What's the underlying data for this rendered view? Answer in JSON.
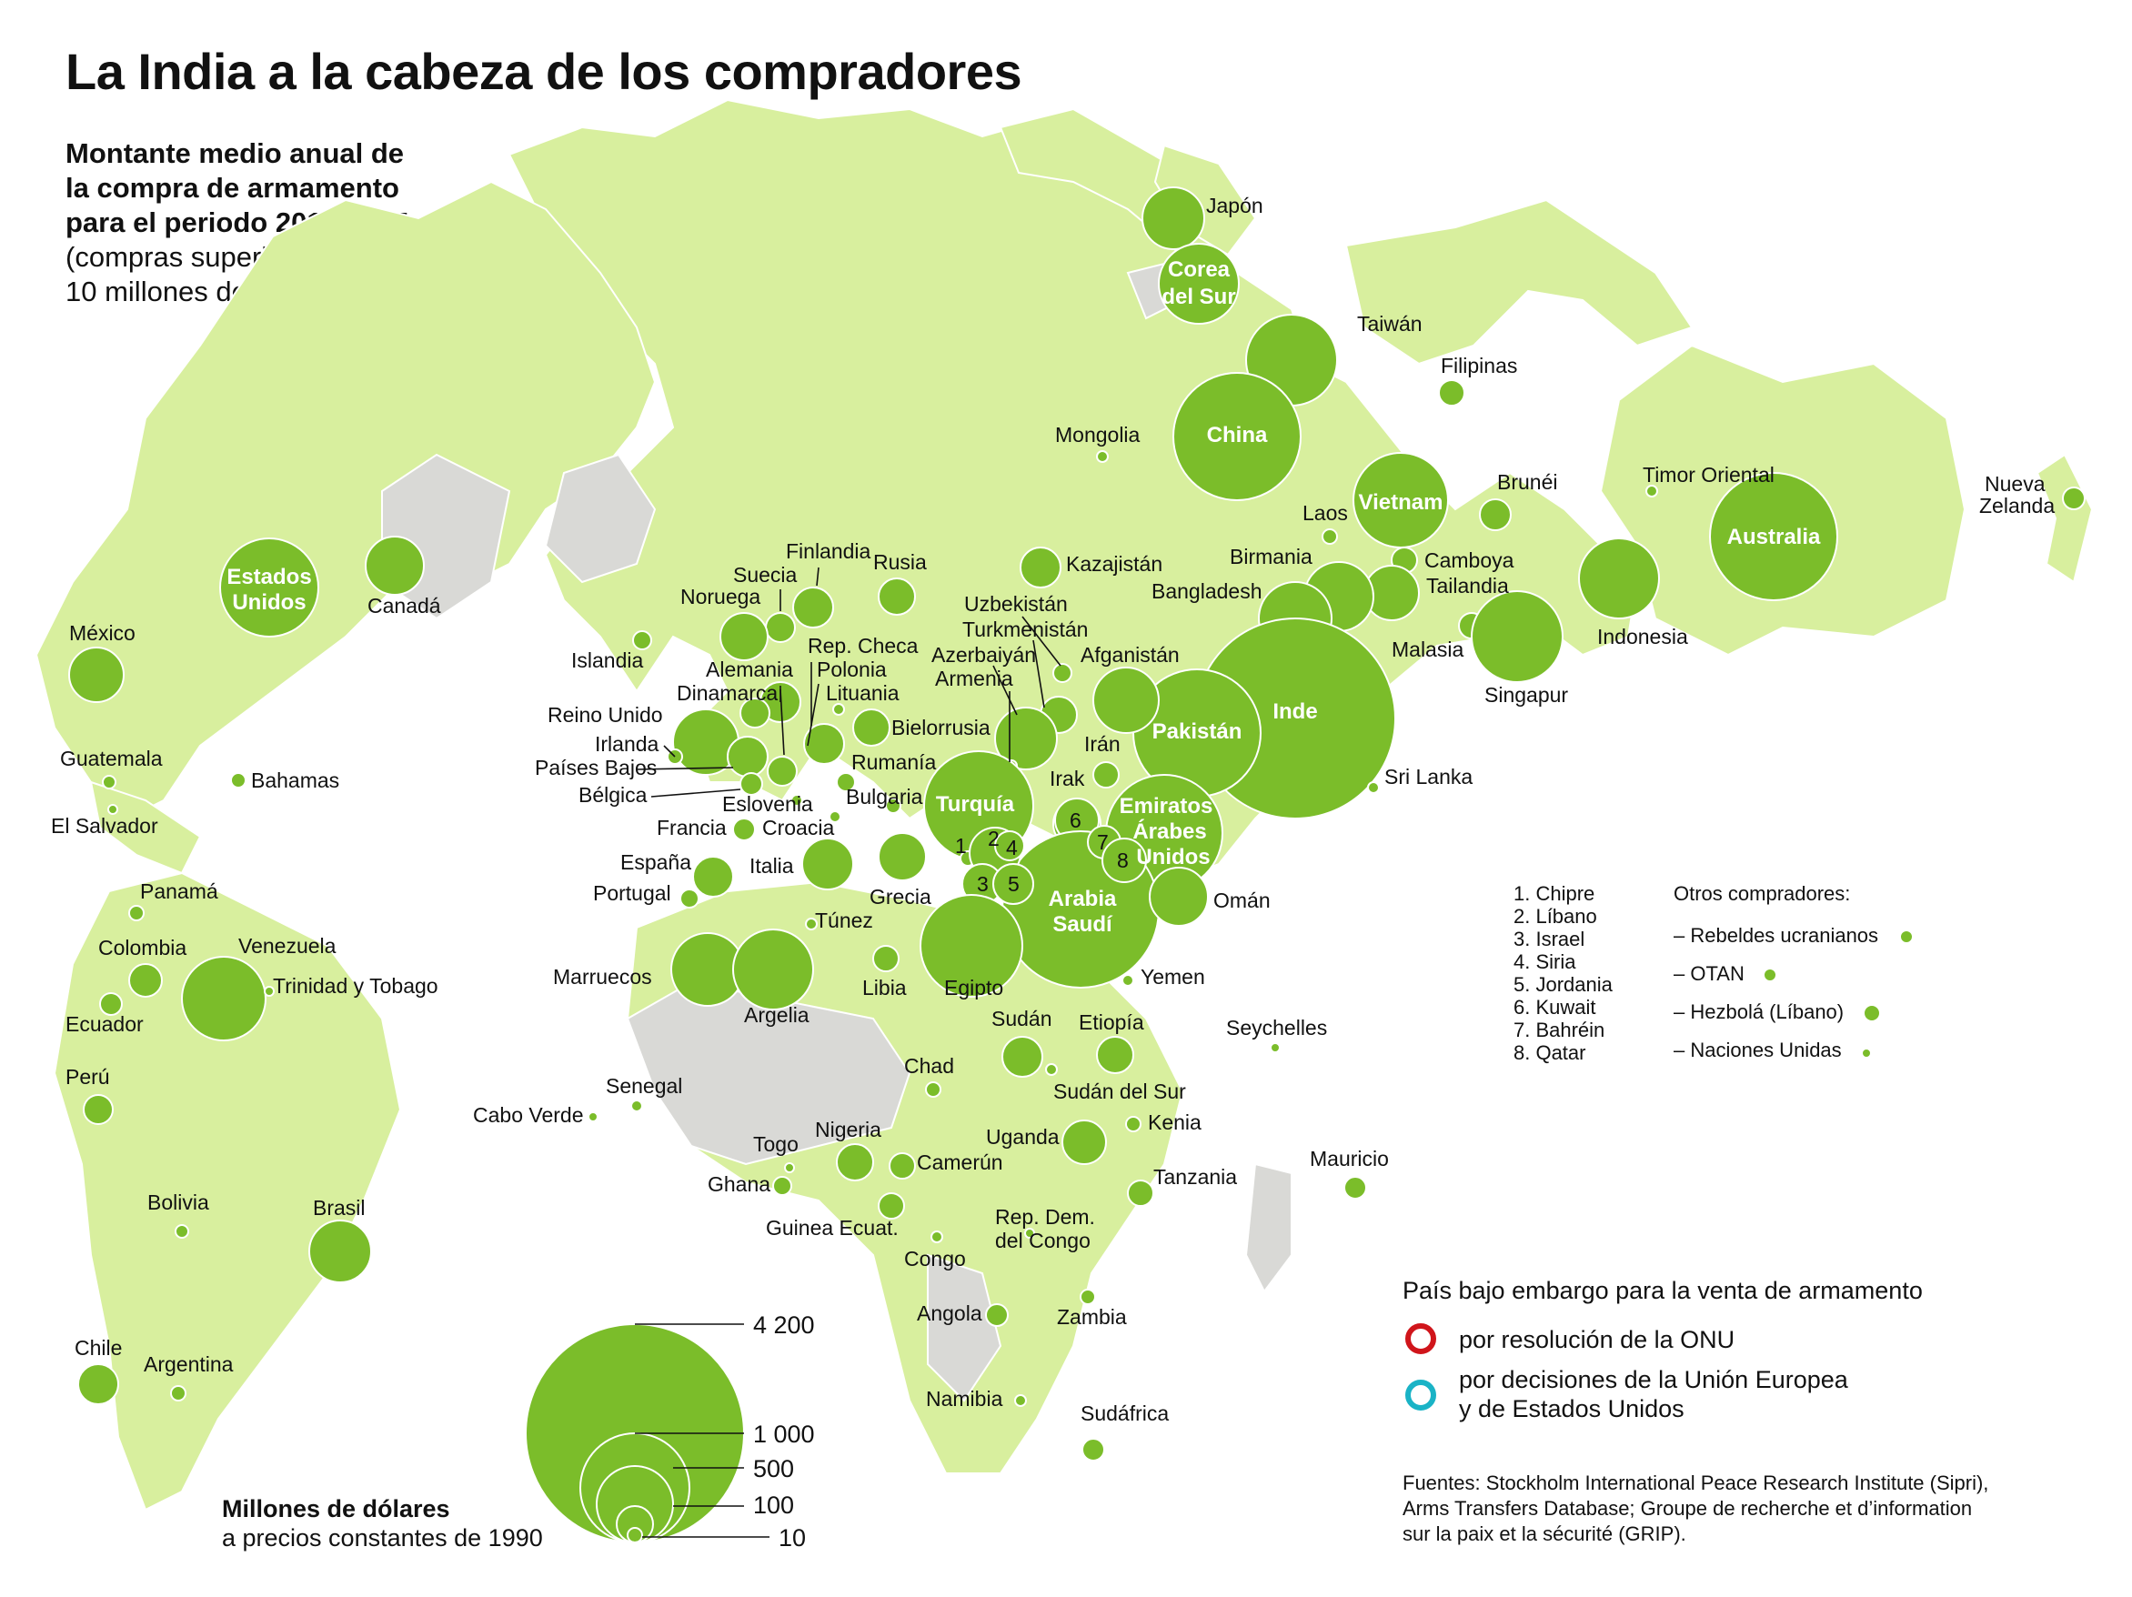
{
  "title": "La India a la cabeza de los compradores",
  "subtitle": {
    "bold_line1": "Montante medio anual de",
    "bold_line2": "la compra de armamento",
    "bold_line3": "para el periodo 2011-2015",
    "line4": "(compras superiores a",
    "line5": "10 millones de dólares)"
  },
  "colors": {
    "bubble": "#7bbd2a",
    "land": "#d8ef9e",
    "gray": "#d9d9d6",
    "onu": "#d0151b",
    "ue": "#1ab3c6"
  },
  "countries": {
    "japon": "Japón",
    "corea": [
      "Corea",
      "del Sur"
    ],
    "taiwan": "Taiwán",
    "filipinas": "Filipinas",
    "china": "China",
    "mongolia": "Mongolia",
    "laos": "Laos",
    "vietnam": "Vietnam",
    "brunei": "Brunéi",
    "timor": "Timor Oriental",
    "nz": [
      "Nueva",
      "Zelanda"
    ],
    "australia": "Australia",
    "birmania": "Birmania",
    "camboya": "Camboya",
    "tailandia": "Tailandia",
    "bangladesh": "Bangladesh",
    "indonesia": "Indonesia",
    "malasia": "Malasia",
    "singapur": "Singapur",
    "inde": "Inde",
    "srilanka": "Sri Lanka",
    "pakistan": "Pakistán",
    "afganistan": "Afganistán",
    "kazajistan": "Kazajistán",
    "uzbekistan": "Uzbekistán",
    "turkmenistan": "Turkmenistán",
    "azerbaiyan": "Azerbaiyán",
    "armenia": "Armenia",
    "iran": "Irán",
    "irak": "Irak",
    "emiratos": [
      "Emiratos",
      "Árabes",
      "Unidos"
    ],
    "oman": "Omán",
    "arabia": [
      "Arabia",
      "Saudí"
    ],
    "yemen": "Yemen",
    "turquia": "Turquía",
    "rusia": "Rusia",
    "finlandia": "Finlandia",
    "suecia": "Suecia",
    "noruega": "Noruega",
    "islandia": "Islandia",
    "alemania": "Alemania",
    "dinamarca": "Dinamarca",
    "repcheca": "Rep. Checa",
    "polonia": "Polonia",
    "lituania": "Lituania",
    "bielorrusia": "Bielorrusia",
    "reinounido": "Reino Unido",
    "irlanda": "Irlanda",
    "paisesbajos": "Países Bajos",
    "belgica": "Bélgica",
    "rumania": "Rumanía",
    "eslovenia": "Eslovenia",
    "bulgaria": "Bulgaria",
    "francia": "Francia",
    "croacia": "Croacia",
    "espana": "España",
    "italia": "Italia",
    "portugal": "Portugal",
    "grecia": "Grecia",
    "tunez": "Túnez",
    "marruecos": "Marruecos",
    "argelia": "Argelia",
    "libia": "Libia",
    "egipto": "Egipto",
    "sudan": "Sudán",
    "etiopia": "Etiopía",
    "chad": "Chad",
    "sudansur": "Sudán del Sur",
    "seychelles": "Seychelles",
    "senegal": "Senegal",
    "caboverde": "Cabo Verde",
    "nigeria": "Nigeria",
    "togo": "Togo",
    "uganda": "Uganda",
    "kenia": "Kenia",
    "ghana": "Ghana",
    "camerun": "Camerún",
    "tanzania": "Tanzania",
    "guinea": "Guinea Ecuat.",
    "mauricio": "Mauricio",
    "congo": "Congo",
    "rdcongo": [
      "Rep. Dem.",
      "del Congo"
    ],
    "angola": "Angola",
    "zambia": "Zambia",
    "namibia": "Namibia",
    "sudafrica": "Sudáfrica",
    "eeuu": [
      "Estados",
      "Unidos"
    ],
    "canada": "Canadá",
    "mexico": "México",
    "guatemala": "Guatemala",
    "bahamas": "Bahamas",
    "elsalvador": "El Salvador",
    "panama": "Panamá",
    "colombia": "Colombia",
    "venezuela": "Venezuela",
    "trinidad": "Trinidad y Tobago",
    "ecuador": "Ecuador",
    "peru": "Perú",
    "bolivia": "Bolivia",
    "brasil": "Brasil",
    "chile": "Chile",
    "argentina": "Argentina"
  },
  "numbers": [
    "1",
    "2",
    "3",
    "4",
    "5",
    "6",
    "7",
    "8"
  ],
  "numbered_key": [
    "1. Chipre",
    "2. Líbano",
    "3. Israel",
    "4. Siria",
    "5. Jordania",
    "6. Kuwait",
    "7. Bahréin",
    "8. Qatar"
  ],
  "otros": {
    "title": "Otros compradores:",
    "items": [
      "– Rebeldes ucranianos",
      "– OTAN",
      "– Hezbolá (Líbano)",
      "– Naciones Unidas"
    ]
  },
  "embargo": {
    "title": "País bajo embargo para la venta de armamento",
    "onu": "por resolución de la ONU",
    "ue_line1": "por decisiones de la Unión Europea",
    "ue_line2": "y de Estados Unidos"
  },
  "scale": {
    "values": [
      "4 200",
      "1 000",
      "500",
      "100",
      "10"
    ],
    "label_bold": "Millones de dólares",
    "label": "a precios constantes de 1990"
  },
  "sources": [
    "Fuentes: Stockholm International Peace Research Institute (Sipri),",
    "Arms Transfers Database; Groupe de recherche et d’information",
    "sur la paix et la sécurité (GRIP)."
  ]
}
